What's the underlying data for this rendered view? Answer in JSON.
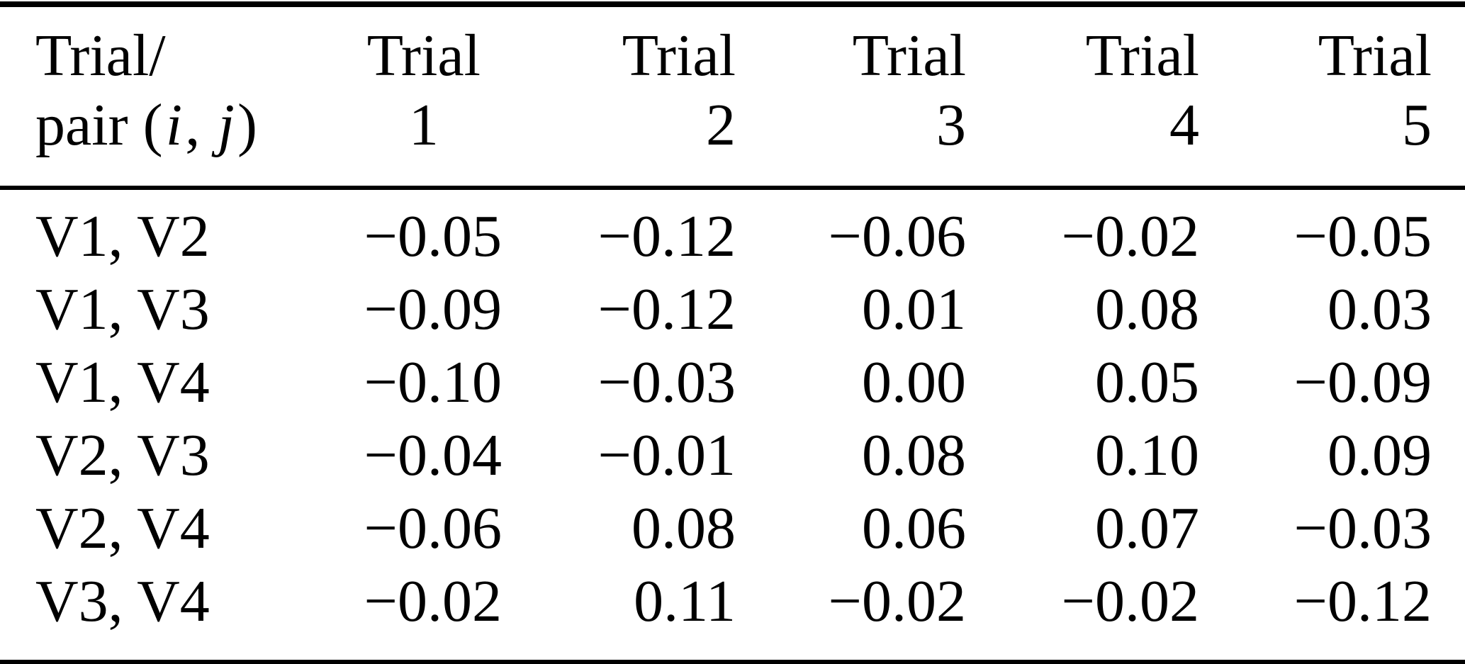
{
  "table": {
    "header": {
      "col0_line1": "Trial/",
      "col0_line2_prefix": "pair (",
      "col0_i": "i",
      "col0_sep": ", ",
      "col0_j": "j",
      "col0_suffix": ")",
      "trial_label": "Trial",
      "trial_numbers": [
        "1",
        "2",
        "3",
        "4",
        "5"
      ]
    },
    "rows": [
      {
        "pair": "V1, V2",
        "values": [
          "−0.05",
          "−0.12",
          "−0.06",
          "−0.02",
          "−0.05"
        ]
      },
      {
        "pair": "V1, V3",
        "values": [
          "−0.09",
          "−0.12",
          "0.01",
          "0.08",
          "0.03"
        ]
      },
      {
        "pair": "V1, V4",
        "values": [
          "−0.10",
          "−0.03",
          "0.00",
          "0.05",
          "−0.09"
        ]
      },
      {
        "pair": "V2, V3",
        "values": [
          "−0.04",
          "−0.01",
          "0.08",
          "0.10",
          "0.09"
        ]
      },
      {
        "pair": "V2, V4",
        "values": [
          "−0.06",
          "0.08",
          "0.06",
          "0.07",
          "−0.03"
        ]
      },
      {
        "pair": "V3, V4",
        "values": [
          "−0.02",
          "0.11",
          "−0.02",
          "−0.02",
          "−0.12"
        ]
      }
    ]
  },
  "chart_data": {
    "type": "table",
    "title": "",
    "columns": [
      "Trial/pair (i, j)",
      "Trial 1",
      "Trial 2",
      "Trial 3",
      "Trial 4",
      "Trial 5"
    ],
    "rows": [
      {
        "pair": "V1, V2",
        "values": [
          -0.05,
          -0.12,
          -0.06,
          -0.02,
          -0.05
        ]
      },
      {
        "pair": "V1, V3",
        "values": [
          -0.09,
          -0.12,
          0.01,
          0.08,
          0.03
        ]
      },
      {
        "pair": "V1, V4",
        "values": [
          -0.1,
          -0.03,
          0.0,
          0.05,
          -0.09
        ]
      },
      {
        "pair": "V2, V3",
        "values": [
          -0.04,
          -0.01,
          0.08,
          0.1,
          0.09
        ]
      },
      {
        "pair": "V2, V4",
        "values": [
          -0.06,
          0.08,
          0.06,
          0.07,
          -0.03
        ]
      },
      {
        "pair": "V3, V4",
        "values": [
          -0.02,
          0.11,
          -0.02,
          -0.02,
          -0.12
        ]
      }
    ]
  }
}
